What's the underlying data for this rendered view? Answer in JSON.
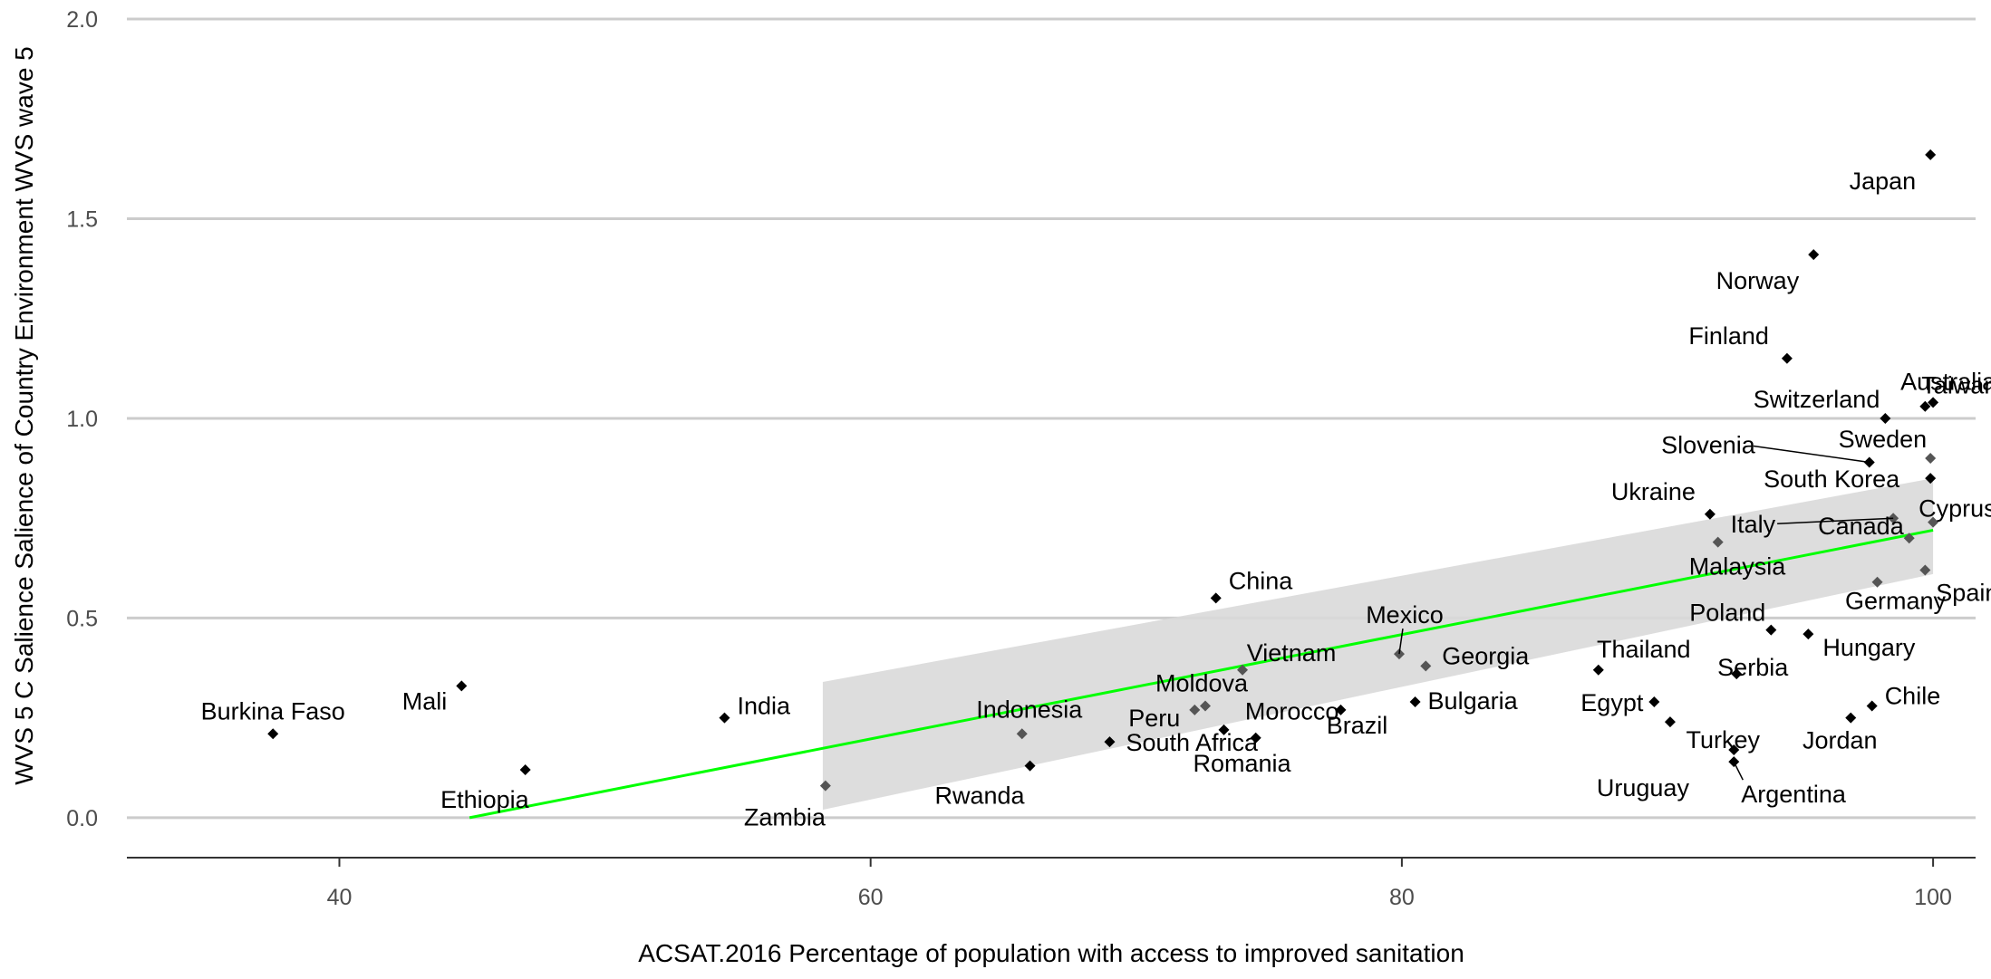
{
  "chart_data": {
    "type": "scatter",
    "title": "",
    "xlabel": "ACSAT.2016 Percentage of population with access to improved sanitation",
    "ylabel": "WVS 5 C Salience Salience of Country Environment WVS wave 5",
    "xlim": [
      32,
      101.6
    ],
    "ylim": [
      -0.1,
      2.0
    ],
    "x_ticks": [
      40,
      60,
      80,
      100
    ],
    "y_ticks": [
      0.0,
      0.5,
      1.0,
      1.5,
      2.0
    ],
    "y_tick_labels": [
      "0.0",
      "0.5",
      "1.0",
      "1.5",
      "2.0"
    ],
    "grid": "horizontal",
    "colors": {
      "fit_line": "#00ff00",
      "ribbon": "#d9d9d9",
      "points": "#000000",
      "grid": "#cccccc",
      "axis": "#333333"
    },
    "points": [
      {
        "label": "Burkina Faso",
        "x": 37.5,
        "y": 0.21
      },
      {
        "label": "Mali",
        "x": 44.6,
        "y": 0.33
      },
      {
        "label": "Ethiopia",
        "x": 47.0,
        "y": 0.12
      },
      {
        "label": "India",
        "x": 54.5,
        "y": 0.25
      },
      {
        "label": "Zambia",
        "x": 58.3,
        "y": 0.08
      },
      {
        "label": "Indonesia",
        "x": 65.7,
        "y": 0.21
      },
      {
        "label": "Rwanda",
        "x": 66.0,
        "y": 0.13
      },
      {
        "label": "South Africa",
        "x": 69.0,
        "y": 0.19
      },
      {
        "label": "Peru",
        "x": 72.2,
        "y": 0.27
      },
      {
        "label": "Moldova",
        "x": 72.6,
        "y": 0.28
      },
      {
        "label": "China",
        "x": 73.0,
        "y": 0.55
      },
      {
        "label": "Romania",
        "x": 73.3,
        "y": 0.22
      },
      {
        "label": "Vietnam",
        "x": 74.0,
        "y": 0.37
      },
      {
        "label": "Morocco",
        "x": 74.5,
        "y": 0.2
      },
      {
        "label": "Brazil",
        "x": 77.7,
        "y": 0.27
      },
      {
        "label": "Mexico",
        "x": 79.9,
        "y": 0.41
      },
      {
        "label": "Bulgaria",
        "x": 80.5,
        "y": 0.29
      },
      {
        "label": "Georgia",
        "x": 80.9,
        "y": 0.38
      },
      {
        "label": "Thailand",
        "x": 87.4,
        "y": 0.37
      },
      {
        "label": "Egypt",
        "x": 89.5,
        "y": 0.29
      },
      {
        "label": "Uruguay",
        "x": 90.1,
        "y": 0.24
      },
      {
        "label": "Ukraine",
        "x": 91.6,
        "y": 0.76
      },
      {
        "label": "Malaysia",
        "x": 91.9,
        "y": 0.69
      },
      {
        "label": "Turkey",
        "x": 92.5,
        "y": 0.17
      },
      {
        "label": "Argentina",
        "x": 92.5,
        "y": 0.14
      },
      {
        "label": "Serbia",
        "x": 92.6,
        "y": 0.36
      },
      {
        "label": "Poland",
        "x": 93.9,
        "y": 0.47
      },
      {
        "label": "Finland",
        "x": 94.5,
        "y": 1.15
      },
      {
        "label": "Hungary",
        "x": 95.3,
        "y": 0.46
      },
      {
        "label": "Norway",
        "x": 95.5,
        "y": 1.41
      },
      {
        "label": "Jordan",
        "x": 96.9,
        "y": 0.25
      },
      {
        "label": "Slovenia",
        "x": 97.6,
        "y": 0.89
      },
      {
        "label": "Chile",
        "x": 97.7,
        "y": 0.28
      },
      {
        "label": "Germany",
        "x": 97.9,
        "y": 0.59
      },
      {
        "label": "Switzerland",
        "x": 98.2,
        "y": 1.0
      },
      {
        "label": "Italy",
        "x": 98.5,
        "y": 0.75
      },
      {
        "label": "Canada",
        "x": 99.1,
        "y": 0.7
      },
      {
        "label": "Spain",
        "x": 99.7,
        "y": 0.62
      },
      {
        "label": "Taiwan",
        "x": 99.7,
        "y": 1.03
      },
      {
        "label": "Japan",
        "x": 99.9,
        "y": 1.66
      },
      {
        "label": "South Korea",
        "x": 99.9,
        "y": 0.85
      },
      {
        "label": "Sweden",
        "x": 99.9,
        "y": 0.9
      },
      {
        "label": "Australia",
        "x": 100.0,
        "y": 1.04
      },
      {
        "label": "Cyprus",
        "x": 100.0,
        "y": 0.74
      }
    ],
    "fit": {
      "x": [
        44.9,
        100.0
      ],
      "y": [
        0.0,
        0.72
      ]
    },
    "ribbon": {
      "upper": [
        [
          58.2,
          0.34
        ],
        [
          100.0,
          0.85
        ]
      ],
      "lower": [
        [
          100.0,
          0.61
        ],
        [
          58.2,
          0.02
        ]
      ]
    }
  }
}
